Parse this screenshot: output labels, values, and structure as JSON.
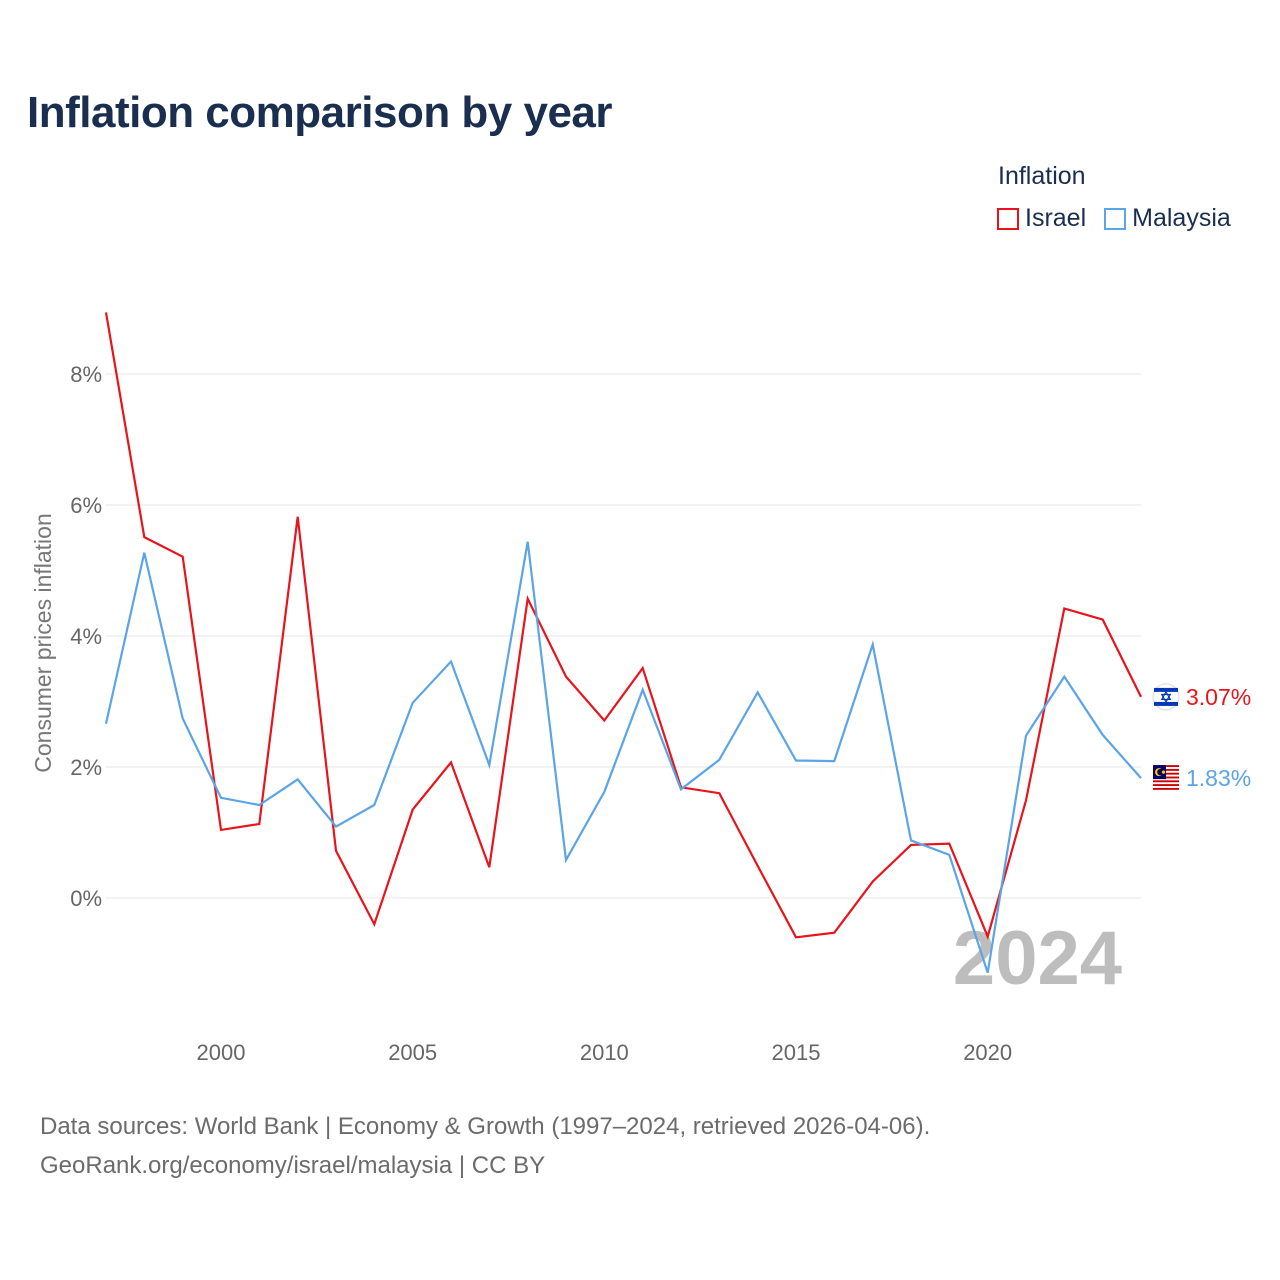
{
  "title": "Inflation comparison by year",
  "legend": {
    "title": "Inflation",
    "items": [
      {
        "label": "Israel",
        "color": "#e8141c"
      },
      {
        "label": "Malaysia",
        "color": "#5ba4e5"
      }
    ]
  },
  "source": {
    "line1": "Data sources: World Bank | Economy & Growth (1997–2024, retrieved 2026-04-06).",
    "line2": "GeoRank.org/economy/israel/malaysia | CC BY"
  },
  "chart_data": {
    "type": "line",
    "title": "Inflation comparison by year",
    "xlabel": "",
    "ylabel": "Consumer prices inflation",
    "xlim": [
      1997,
      2024
    ],
    "ylim": [
      -1.7,
      9.3
    ],
    "x_ticks": [
      2000,
      2005,
      2010,
      2015,
      2020
    ],
    "y_ticks": [
      0,
      2,
      4,
      6,
      8
    ],
    "y_tick_labels": [
      "0%",
      "2%",
      "4%",
      "6%",
      "8%"
    ],
    "grid": true,
    "legend_position": "top-right",
    "current_year_label": "2024",
    "x": [
      1997,
      1998,
      1999,
      2000,
      2001,
      2002,
      2003,
      2004,
      2005,
      2006,
      2007,
      2008,
      2009,
      2010,
      2011,
      2012,
      2013,
      2014,
      2015,
      2016,
      2017,
      2018,
      2019,
      2020,
      2021,
      2022,
      2023,
      2024
    ],
    "series": [
      {
        "name": "Israel",
        "color": "#e8141c",
        "end_label": "3.07%",
        "values": [
          8.94,
          5.51,
          5.21,
          1.04,
          1.13,
          5.82,
          0.72,
          -0.4,
          1.35,
          2.07,
          0.47,
          4.57,
          3.38,
          2.71,
          3.51,
          1.69,
          1.6,
          0.49,
          -0.6,
          -0.53,
          0.25,
          0.81,
          0.83,
          -0.59,
          1.49,
          4.42,
          4.25,
          3.07
        ]
      },
      {
        "name": "Malaysia",
        "color": "#5ba4e5",
        "end_label": "1.83%",
        "values": [
          2.66,
          5.27,
          2.74,
          1.53,
          1.42,
          1.81,
          1.09,
          1.42,
          2.98,
          3.61,
          2.03,
          5.44,
          0.58,
          1.62,
          3.18,
          1.66,
          2.11,
          3.14,
          2.1,
          2.09,
          3.87,
          0.88,
          0.66,
          -1.14,
          2.48,
          3.38,
          2.49,
          1.83
        ]
      }
    ]
  }
}
